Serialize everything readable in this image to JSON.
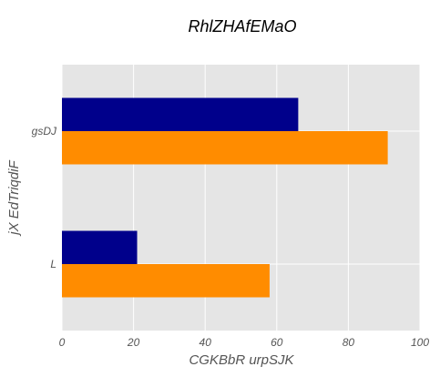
{
  "chart_data": {
    "type": "bar",
    "orientation": "horizontal",
    "title": "RhlZHAfEMaO",
    "xlabel": "CGKBbR urpSJK",
    "ylabel": "jX EdTriqdiF",
    "categories": [
      "gsDJ",
      "L"
    ],
    "series": [
      {
        "color": "#00008b",
        "values": [
          66,
          21
        ]
      },
      {
        "color": "#ff8c00",
        "values": [
          91,
          58
        ]
      }
    ],
    "xlim": [
      0,
      100
    ],
    "xticks": [
      0,
      20,
      40,
      60,
      80,
      100
    ],
    "xtick_labels": [
      "0",
      "20",
      "40",
      "60",
      "80",
      "100"
    ],
    "grid": true,
    "background": "#e5e5e5",
    "grid_color": "#ffffff"
  }
}
